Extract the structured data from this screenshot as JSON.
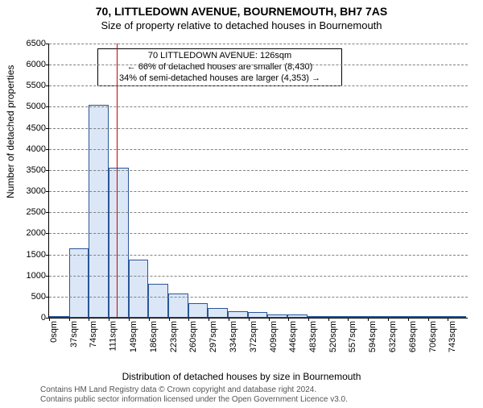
{
  "title_main": "70, LITTLEDOWN AVENUE, BOURNEMOUTH, BH7 7AS",
  "title_sub": "Size of property relative to detached houses in Bournemouth",
  "ylabel": "Number of detached properties",
  "xlabel": "Distribution of detached houses by size in Bournemouth",
  "chart": {
    "type": "histogram",
    "ylim": [
      0,
      6500
    ],
    "ytick_step": 500,
    "yticks": [
      0,
      500,
      1000,
      1500,
      2000,
      2500,
      3000,
      3500,
      4000,
      4500,
      5000,
      5500,
      6000,
      6500
    ],
    "bar_fill": "#dbe7f7",
    "bar_stroke": "#2a5599",
    "grid_color": "#808080",
    "refline_color": "#cc0000",
    "refline_x": 126,
    "x_max": 780,
    "xticks": [
      0,
      37,
      74,
      111,
      149,
      186,
      223,
      260,
      297,
      334,
      372,
      409,
      446,
      483,
      520,
      557,
      594,
      632,
      669,
      706,
      743
    ],
    "bin_width": 37,
    "bars": [
      40,
      1650,
      5050,
      3550,
      1370,
      800,
      570,
      350,
      230,
      160,
      140,
      80,
      80,
      40,
      30,
      20,
      15,
      10,
      8,
      5,
      3
    ]
  },
  "annotation": {
    "line1": "70 LITTLEDOWN AVENUE: 126sqm",
    "line2": "← 66% of detached houses are smaller (8,430)",
    "line3": "34% of semi-detached houses are larger (4,353) →"
  },
  "footer": {
    "line1": "Contains HM Land Registry data © Crown copyright and database right 2024.",
    "line2": "Contains public sector information licensed under the Open Government Licence v3.0."
  }
}
